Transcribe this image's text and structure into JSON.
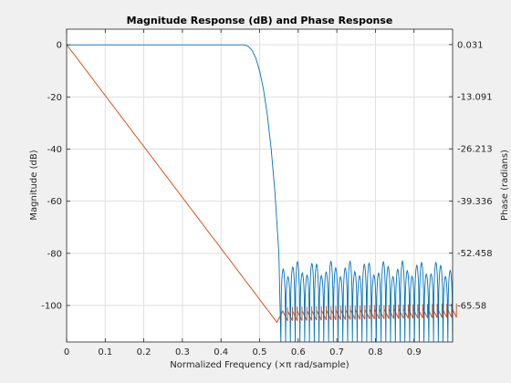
{
  "chart_data": {
    "type": "line",
    "title": "Magnitude Response (dB) and Phase Response",
    "xlabel": "Normalized Frequency (×π rad/sample)",
    "ylabel_left": "Magnitude (dB)",
    "ylabel_right": "Phase (radians)",
    "xlim": [
      0,
      1
    ],
    "ylim_left": [
      -114,
      6
    ],
    "ylim_right": [
      -74.8,
      3.9
    ],
    "grid": true,
    "x_ticks": [
      "0",
      "0.1",
      "0.2",
      "0.3",
      "0.4",
      "0.5",
      "0.6",
      "0.7",
      "0.8",
      "0.9"
    ],
    "x_tick_values": [
      0,
      0.1,
      0.2,
      0.3,
      0.4,
      0.5,
      0.6,
      0.7,
      0.8,
      0.9
    ],
    "y_ticks_left": [
      "0",
      "-20",
      "-40",
      "-60",
      "-80",
      "-100"
    ],
    "y_tick_values_left": [
      0,
      -20,
      -40,
      -60,
      -80,
      -100
    ],
    "y_ticks_right": [
      "0.031",
      "-13.091",
      "-26.213",
      "-39.336",
      "-52.458",
      "-65.58"
    ],
    "y_tick_values_right": [
      0.031,
      -13.091,
      -26.213,
      -39.336,
      -52.458,
      -65.58
    ],
    "series": [
      {
        "axis": "left",
        "color": "#0072bd",
        "passband_edge": 0.46,
        "stopband_start": 0.555,
        "stopband_end": 1.0,
        "stopband_ripple_top": -86,
        "stopband_floor": -114,
        "x": [
          0,
          0.2,
          0.4,
          0.46,
          0.47,
          0.48,
          0.49,
          0.5,
          0.51,
          0.52,
          0.53,
          0.54,
          0.55,
          0.555
        ],
        "y": [
          0,
          0,
          0,
          0,
          -0.5,
          -2,
          -5,
          -10,
          -17,
          -27,
          -40,
          -57,
          -80,
          -114
        ]
      },
      {
        "axis": "right",
        "color": "#d95319",
        "x": [
          0,
          0.55,
          0.555,
          0.56,
          0.57,
          0.6,
          0.7,
          0.8,
          0.9,
          1.0
        ],
        "y": [
          0.031,
          -70.5,
          -72.5,
          -69,
          -66.5,
          -66.8,
          -66.3,
          -66.0,
          -65.6,
          -65.4
        ]
      }
    ]
  }
}
